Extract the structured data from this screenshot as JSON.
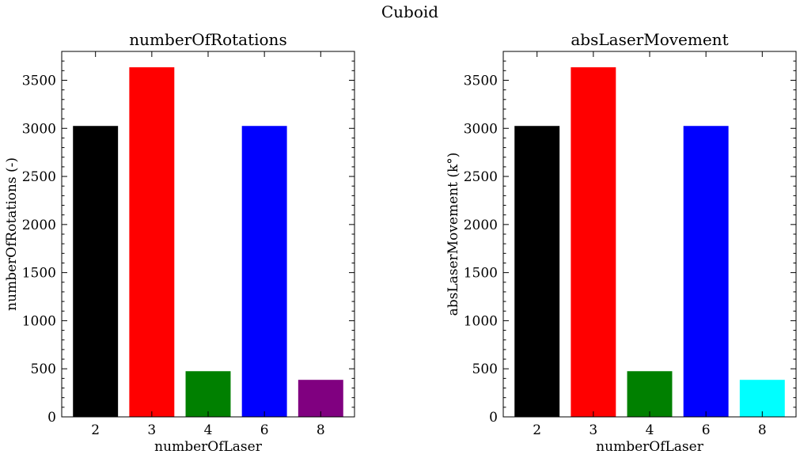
{
  "figure_title": "Cuboid",
  "chart_data": [
    {
      "type": "bar",
      "title": "numberOfRotations",
      "xlabel": "numberOfLaser",
      "ylabel": "numberOfRotations (-)",
      "categories": [
        "2",
        "3",
        "4",
        "6",
        "8"
      ],
      "values": [
        3025,
        3635,
        475,
        3025,
        385
      ],
      "colors": [
        "#000000",
        "#ff0000",
        "#008000",
        "#0000ff",
        "#800080"
      ],
      "ylim": [
        0,
        3800
      ],
      "yticks": [
        0,
        500,
        1000,
        1500,
        2000,
        2500,
        3000,
        3500
      ],
      "grid": false
    },
    {
      "type": "bar",
      "title": "absLaserMovement",
      "xlabel": "numberOfLaser",
      "ylabel": "absLaserMovement (k°)",
      "categories": [
        "2",
        "3",
        "4",
        "6",
        "8"
      ],
      "values": [
        3025,
        3635,
        475,
        3025,
        385
      ],
      "colors": [
        "#000000",
        "#ff0000",
        "#008000",
        "#0000ff",
        "#00ffff"
      ],
      "ylim": [
        0,
        3800
      ],
      "yticks": [
        0,
        500,
        1000,
        1500,
        2000,
        2500,
        3000,
        3500
      ],
      "grid": false
    }
  ]
}
